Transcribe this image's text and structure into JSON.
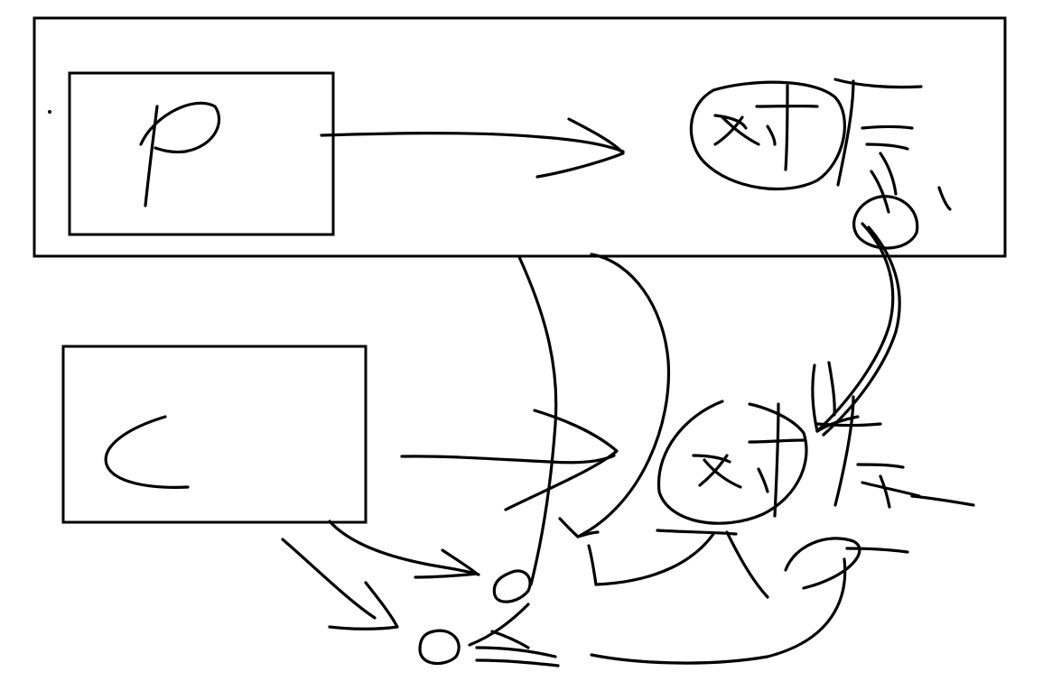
{
  "labels": {
    "top_box": "P",
    "bottom_box": "C",
    "top_target": "对象",
    "bottom_target": "对象"
  },
  "colors": {
    "ink": "#000000",
    "background": "#ffffff"
  }
}
